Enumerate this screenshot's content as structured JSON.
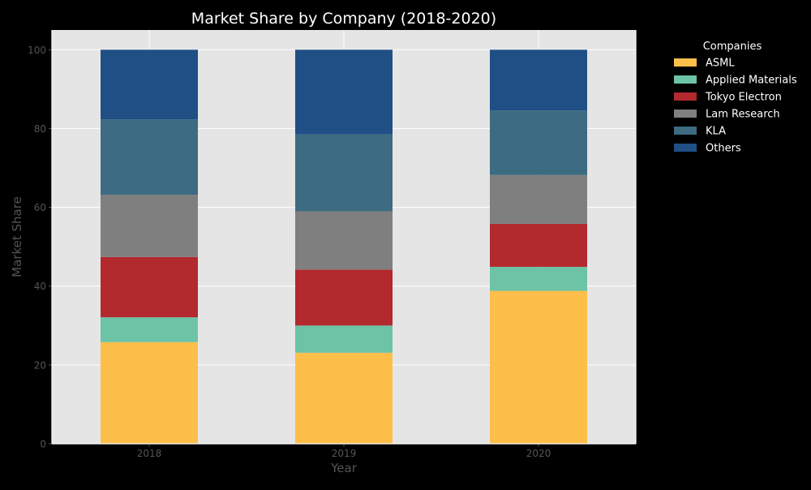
{
  "chart_data": {
    "type": "bar",
    "stacked": true,
    "title": "Market Share by Company (2018-2020)",
    "xlabel": "Year",
    "ylabel": "Market Share",
    "categories": [
      "2018",
      "2019",
      "2020"
    ],
    "ylim": [
      0,
      105
    ],
    "yticks": [
      0,
      20,
      40,
      60,
      80,
      100
    ],
    "grid": true,
    "legend": {
      "title": "Companies",
      "placement": "outside-right-top"
    },
    "series": [
      {
        "name": "ASML",
        "color": "#FDBE4A",
        "values": [
          25.8,
          23.1,
          38.8
        ]
      },
      {
        "name": "Applied Materials",
        "color": "#6CC3A5",
        "values": [
          6.3,
          6.9,
          6.1
        ]
      },
      {
        "name": "Tokyo Electron",
        "color": "#B2292E",
        "values": [
          15.3,
          14.2,
          10.9
        ]
      },
      {
        "name": "Lam Research",
        "color": "#7F7F7F",
        "values": [
          15.8,
          14.8,
          12.4
        ]
      },
      {
        "name": "KLA",
        "color": "#3D6B82",
        "values": [
          19.1,
          19.5,
          16.4
        ]
      },
      {
        "name": "Others",
        "color": "#204F86",
        "values": [
          17.7,
          21.5,
          15.4
        ]
      }
    ]
  }
}
